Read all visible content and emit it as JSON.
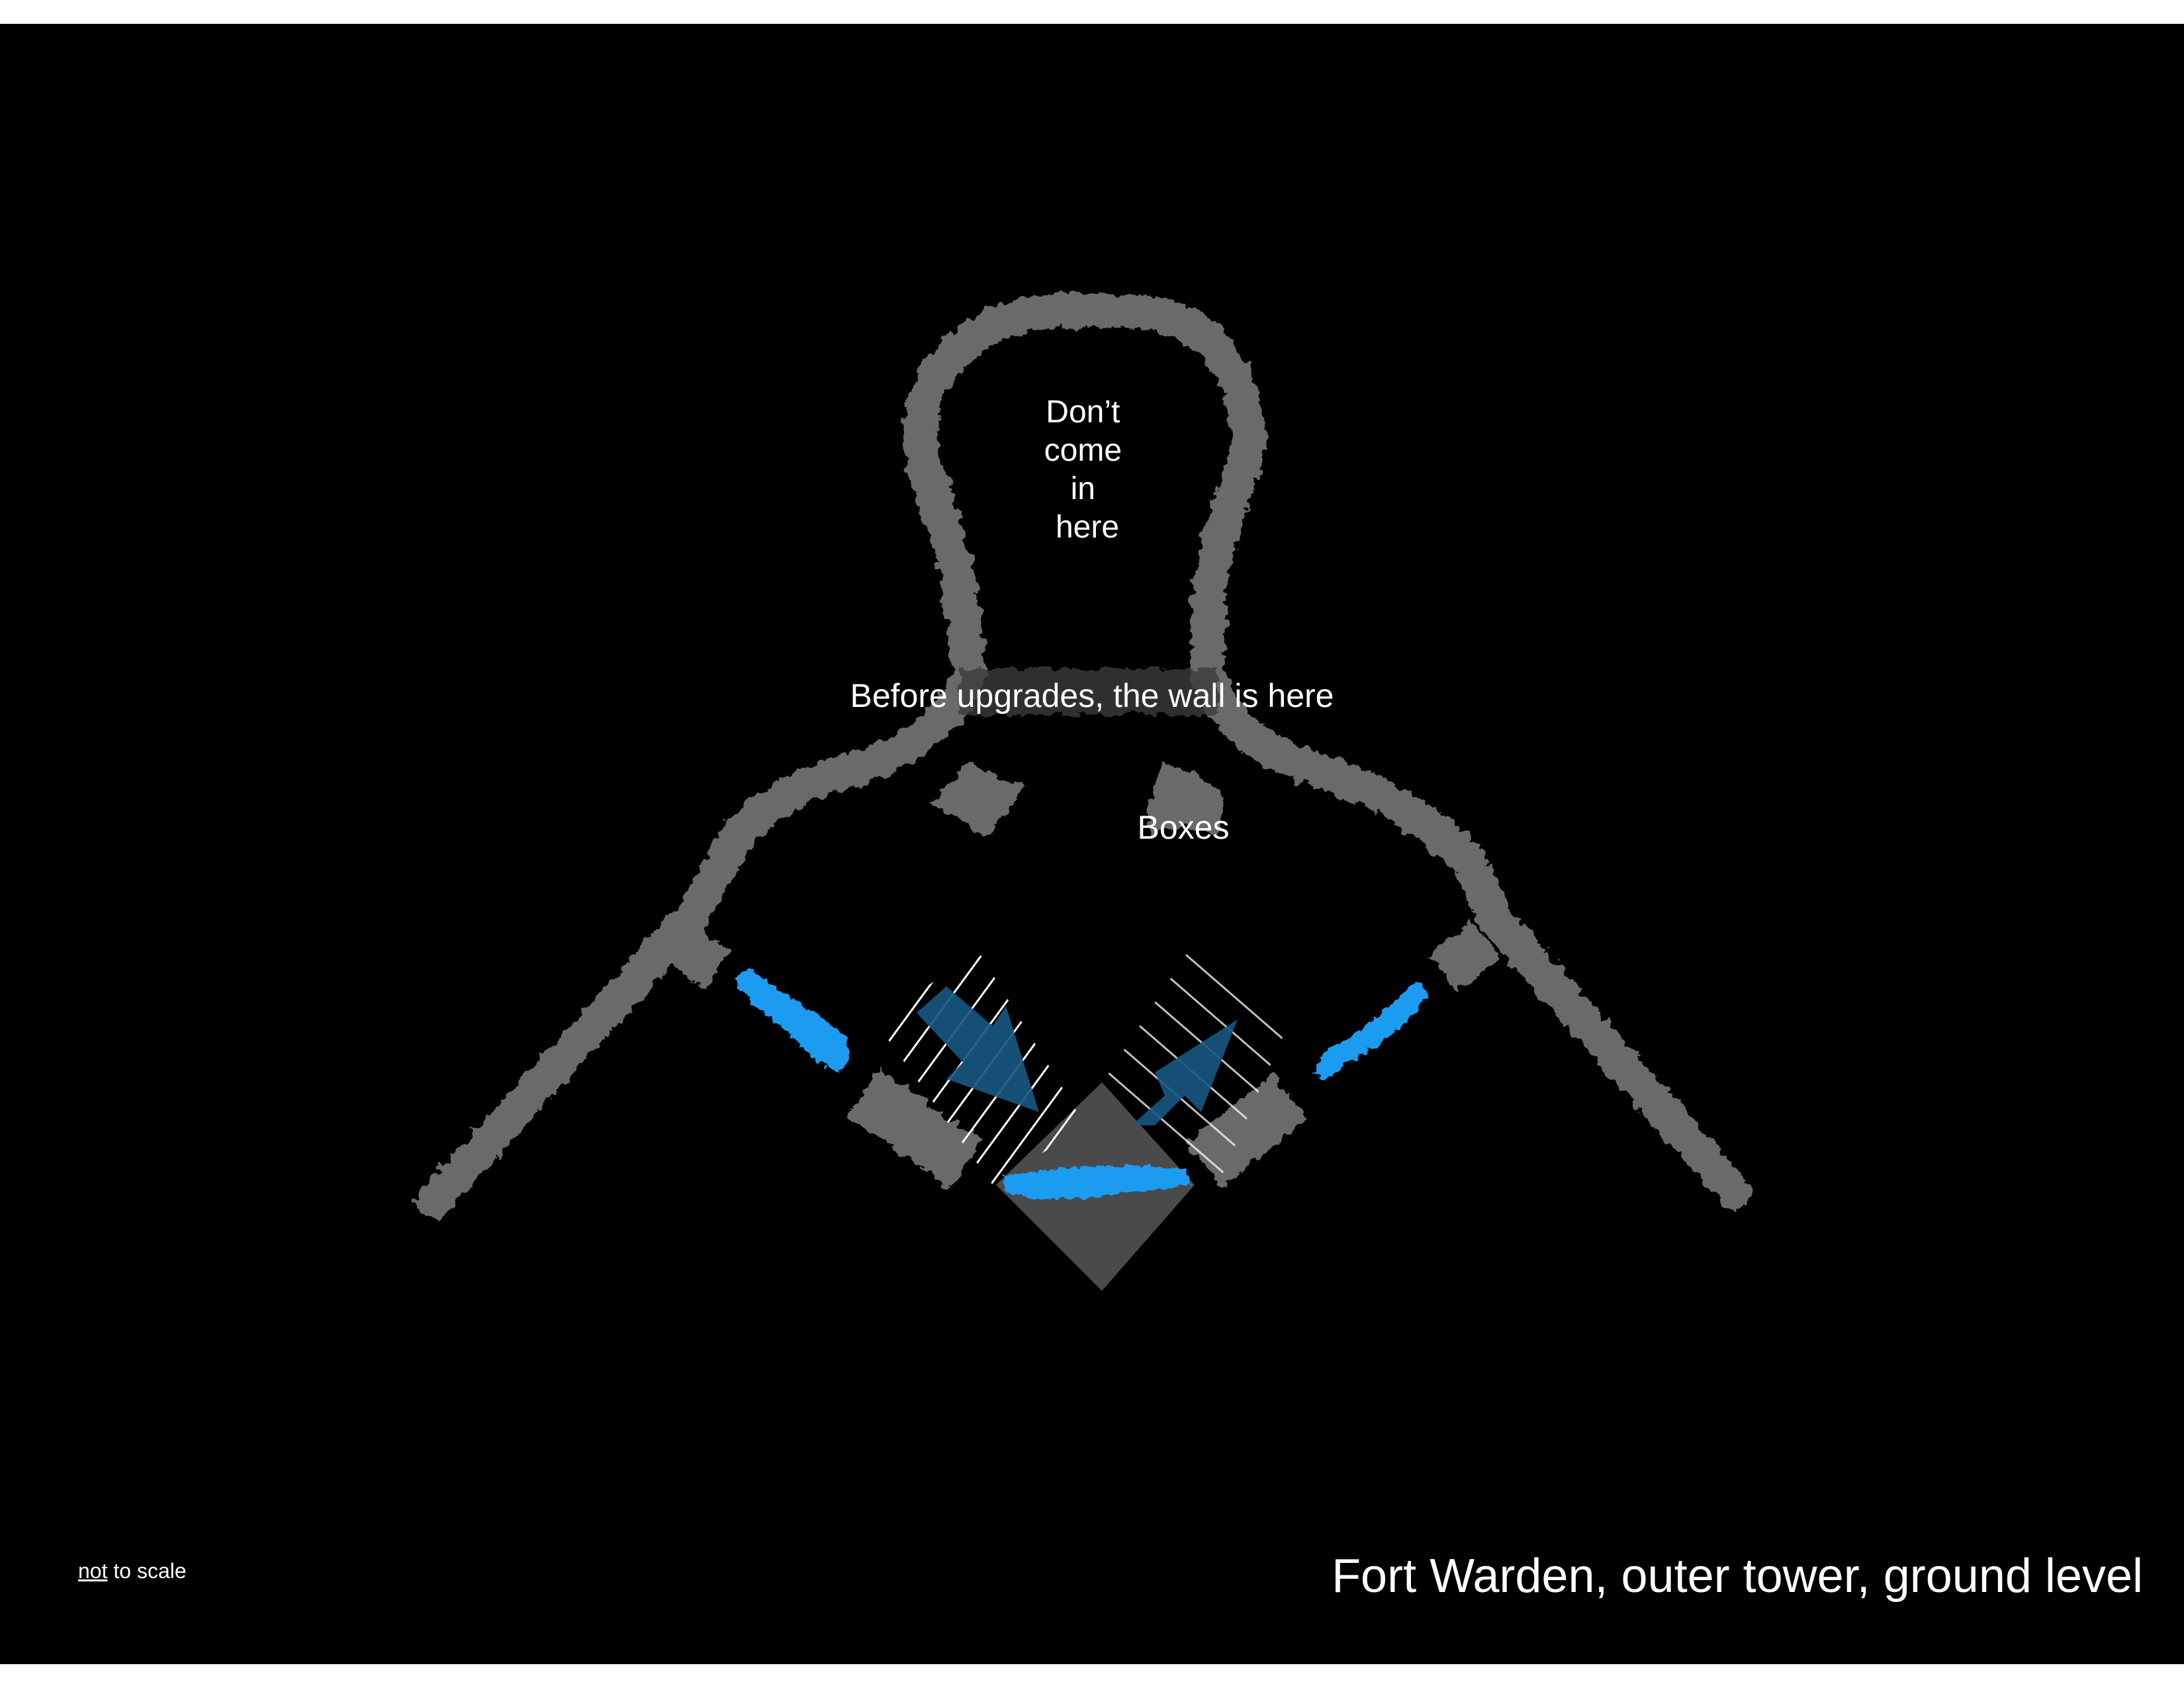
{
  "map": {
    "title": "Fort Warden, outer tower, ground level",
    "scale_note": {
      "negation": "not",
      "rest": " to scale"
    },
    "labels": {
      "room_lines": [
        "Don’t",
        "come",
        "in",
        "here"
      ],
      "old_wall": "Before upgrades, the wall is here",
      "boxes": "Boxes"
    },
    "colors": {
      "background": "#000000",
      "walls": "#6b6b6b",
      "inner_block": "#4a4a4a",
      "crossing": "#1b9cf0",
      "arrows": "#17567f",
      "hatching": "#ffffff",
      "text": "#ffffff"
    }
  }
}
